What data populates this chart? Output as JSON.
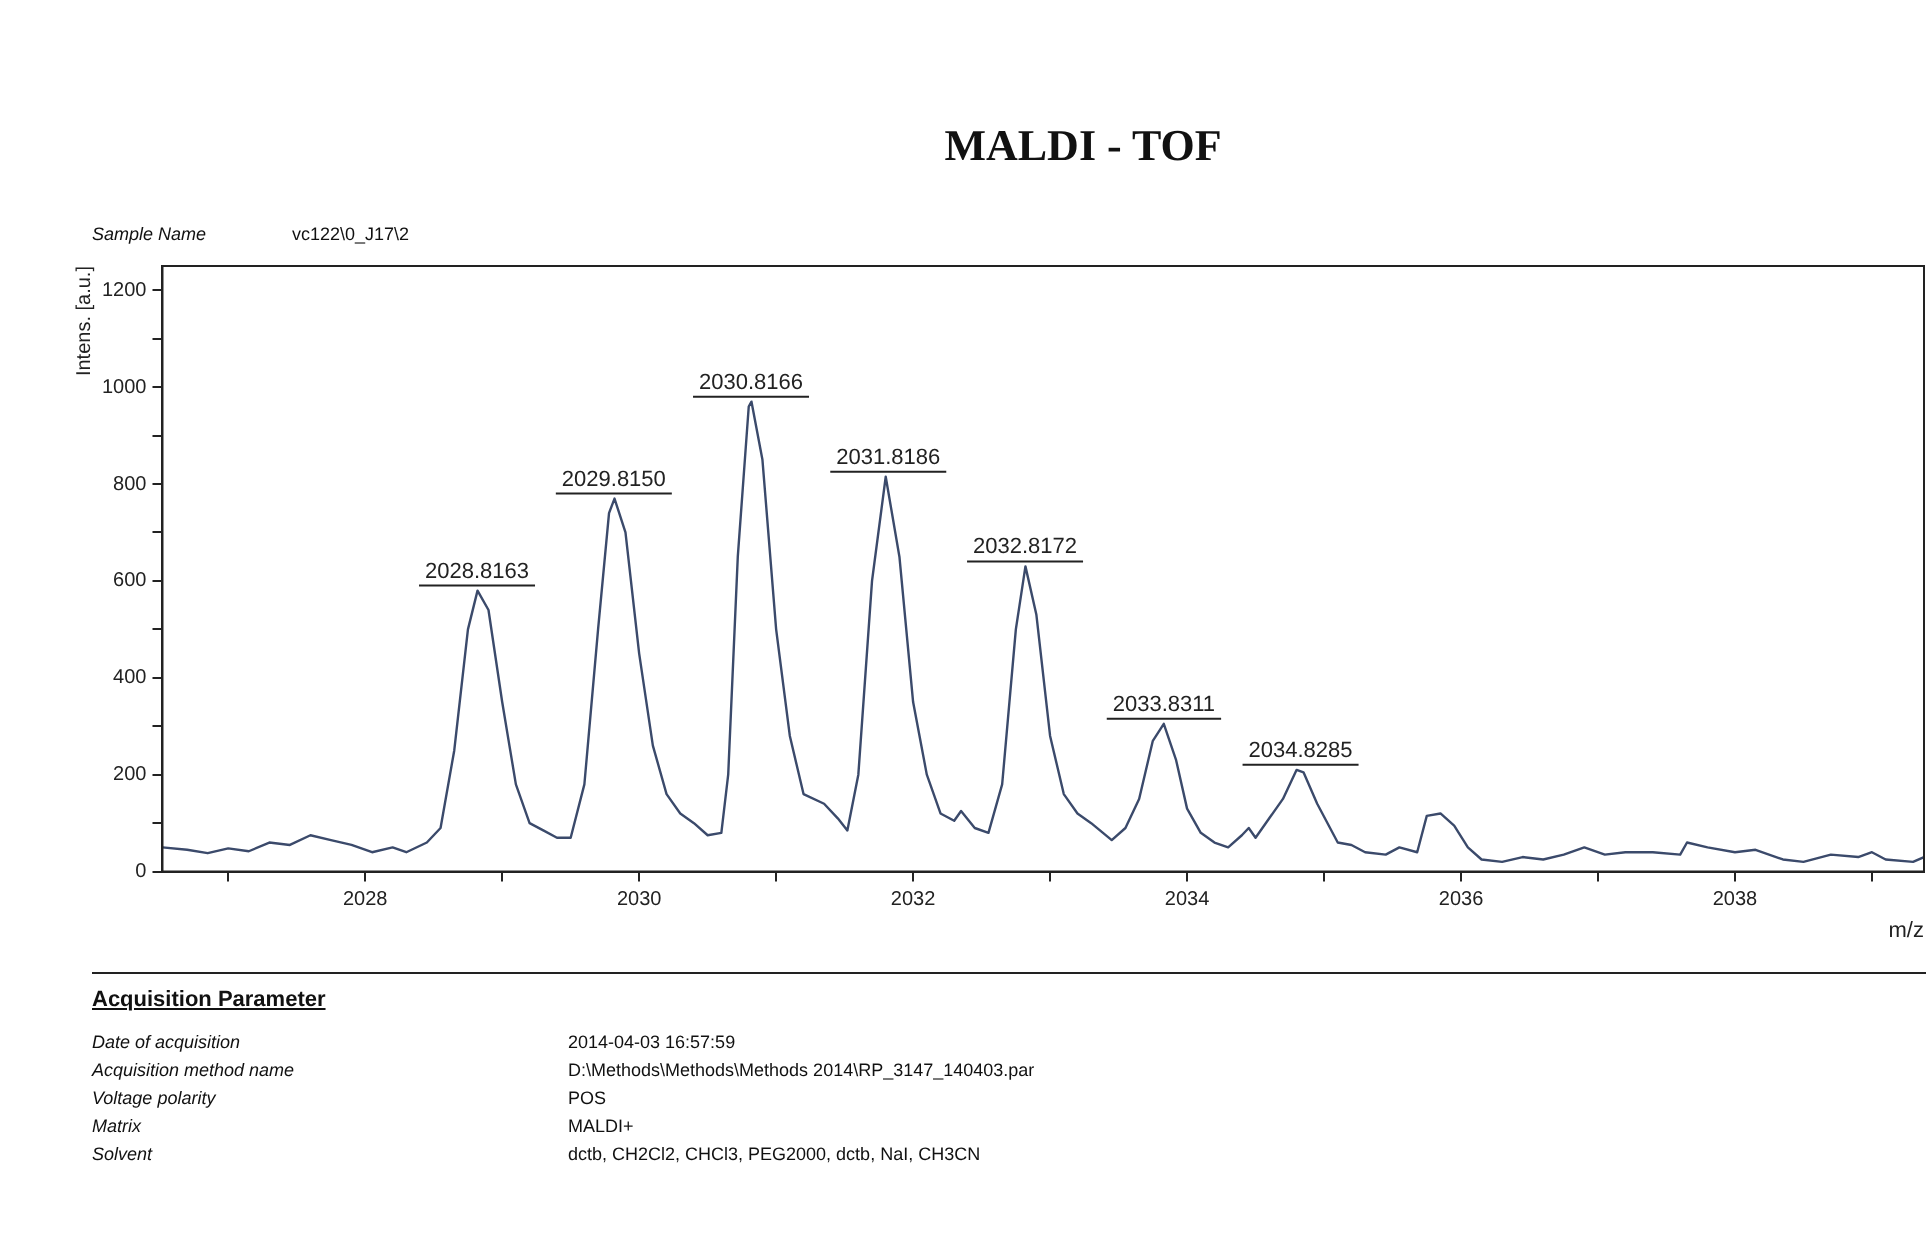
{
  "chart_data": {
    "type": "line",
    "title": "MALDI - TOF",
    "xlabel": "m/z",
    "ylabel": "Intens. [a.u.]",
    "xlim": [
      2026.52,
      2039.38
    ],
    "xticks": [
      {
        "value": 2027,
        "label": null
      },
      2028,
      {
        "value": 2029,
        "label": null
      },
      2030,
      {
        "value": 2031,
        "label": null
      },
      2032,
      {
        "value": 2033,
        "label": null
      },
      2034,
      {
        "value": 2035,
        "label": null
      },
      2036,
      {
        "value": 2037,
        "label": null
      },
      2038,
      {
        "value": 2039,
        "label": null
      }
    ],
    "ylim": [
      0,
      1250
    ],
    "yticks": [
      0,
      {
        "value": 100,
        "label": null
      },
      200,
      {
        "value": 300,
        "label": null
      },
      400,
      {
        "value": 500,
        "label": null
      },
      600,
      {
        "value": 700,
        "label": null
      },
      800,
      {
        "value": 900,
        "label": null
      },
      1000,
      {
        "value": 1100,
        "label": null
      },
      1200
    ],
    "grid": false,
    "legend": false,
    "marker": "none",
    "line_style": "solid",
    "series": [
      {
        "color": "#3b4a6b",
        "x": [
          2026.52,
          2026.7,
          2026.85,
          2027.0,
          2027.15,
          2027.3,
          2027.45,
          2027.6,
          2027.75,
          2027.9,
          2028.05,
          2028.2,
          2028.3,
          2028.45,
          2028.55,
          2028.65,
          2028.75,
          2028.82,
          2028.9,
          2029.0,
          2029.1,
          2029.2,
          2029.3,
          2029.4,
          2029.5,
          2029.6,
          2029.7,
          2029.78,
          2029.82,
          2029.9,
          2030.0,
          2030.1,
          2030.2,
          2030.3,
          2030.4,
          2030.5,
          2030.6,
          2030.65,
          2030.72,
          2030.8,
          2030.82,
          2030.9,
          2031.0,
          2031.1,
          2031.2,
          2031.35,
          2031.45,
          2031.52,
          2031.6,
          2031.7,
          2031.8,
          2031.9,
          2032.0,
          2032.1,
          2032.2,
          2032.3,
          2032.35,
          2032.45,
          2032.55,
          2032.65,
          2032.75,
          2032.82,
          2032.9,
          2033.0,
          2033.1,
          2033.2,
          2033.3,
          2033.45,
          2033.55,
          2033.65,
          2033.75,
          2033.83,
          2033.92,
          2034.0,
          2034.1,
          2034.2,
          2034.3,
          2034.4,
          2034.45,
          2034.5,
          2034.6,
          2034.7,
          2034.8,
          2034.85,
          2034.95,
          2035.1,
          2035.2,
          2035.3,
          2035.45,
          2035.55,
          2035.68,
          2035.75,
          2035.85,
          2035.95,
          2036.05,
          2036.15,
          2036.3,
          2036.45,
          2036.6,
          2036.75,
          2036.9,
          2037.05,
          2037.2,
          2037.4,
          2037.6,
          2037.65,
          2037.8,
          2038.0,
          2038.15,
          2038.35,
          2038.5,
          2038.7,
          2038.9,
          2039.0,
          2039.1,
          2039.3,
          2039.38
        ],
        "values": [
          50,
          45,
          38,
          48,
          42,
          60,
          55,
          75,
          65,
          55,
          40,
          50,
          40,
          60,
          90,
          250,
          500,
          580,
          540,
          350,
          180,
          100,
          85,
          70,
          70,
          180,
          500,
          740,
          770,
          700,
          450,
          260,
          160,
          120,
          100,
          75,
          80,
          200,
          650,
          960,
          970,
          850,
          500,
          280,
          160,
          140,
          110,
          85,
          200,
          600,
          815,
          650,
          350,
          200,
          120,
          105,
          125,
          90,
          80,
          180,
          500,
          630,
          530,
          280,
          160,
          120,
          100,
          65,
          90,
          150,
          270,
          305,
          230,
          130,
          80,
          60,
          50,
          75,
          90,
          70,
          110,
          150,
          210,
          205,
          140,
          60,
          55,
          40,
          35,
          50,
          40,
          115,
          120,
          95,
          50,
          25,
          20,
          30,
          25,
          35,
          50,
          35,
          40,
          40,
          35,
          60,
          50,
          40,
          45,
          25,
          20,
          35,
          30,
          40,
          25,
          20,
          30
        ]
      }
    ],
    "annotations": [
      {
        "text": "2028.8163",
        "x": 2028.8163,
        "y": 580
      },
      {
        "text": "2029.8150",
        "x": 2029.815,
        "y": 770
      },
      {
        "text": "2030.8166",
        "x": 2030.8166,
        "y": 970
      },
      {
        "text": "2031.8186",
        "x": 2031.8186,
        "y": 815
      },
      {
        "text": "2032.8172",
        "x": 2032.8172,
        "y": 630
      },
      {
        "text": "2033.8311",
        "x": 2033.8311,
        "y": 305
      },
      {
        "text": "2034.8285",
        "x": 2034.8285,
        "y": 210
      },
      "Sample Name",
      "vc122\\0_J17\\2",
      "Acquisition Parameter",
      "Date of acquisition",
      "2014-04-03 16:57:59",
      "Acquisition method name",
      "D:\\Methods\\Methods\\Methods 2014\\RP_3147_140403.par",
      "Voltage polarity",
      "POS",
      "Matrix",
      "MALDI+",
      "Solvent",
      "dctb, CH2Cl2, CHCl3, PEG2000, dctb, NaI, CH3CN"
    ]
  }
}
